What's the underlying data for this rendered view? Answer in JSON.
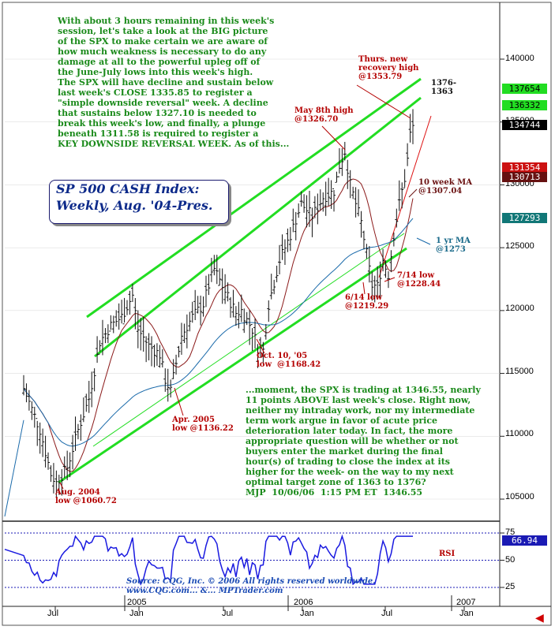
{
  "chart_data": {
    "type": "candlestick",
    "title": "SP 500 CASH Index:",
    "subtitle": "Weekly, Aug. '04-Pres.",
    "y_ticks": [
      "140000",
      "135000",
      "130000",
      "125000",
      "120000",
      "115000",
      "110000",
      "105000"
    ],
    "x_ticks": [
      "Jul",
      "2005",
      "Jan",
      "Jul",
      "2006",
      "Jan",
      "Jul",
      "2007",
      "Jan"
    ],
    "ylim": [
      102000,
      144000
    ],
    "price_boxes": [
      {
        "label": "137654",
        "value": 137654,
        "bg": "#22dd22",
        "fg": "#000000"
      },
      {
        "label": "136332",
        "value": 136332,
        "bg": "#22dd22",
        "fg": "#000000"
      },
      {
        "label": "134744",
        "value": 134744,
        "bg": "#000000",
        "fg": "#ffffff"
      },
      {
        "label": "131354",
        "value": 131354,
        "bg": "#cc1111",
        "fg": "#ffffff"
      },
      {
        "label": "130713",
        "value": 130713,
        "bg": "#661111",
        "fg": "#ffffff"
      },
      {
        "label": "127293",
        "value": 127293,
        "bg": "#117777",
        "fg": "#ffffff"
      }
    ],
    "weekly_close_points": [
      [
        0,
        113800
      ],
      [
        6,
        110500
      ],
      [
        10,
        107000
      ],
      [
        12,
        106300
      ],
      [
        16,
        107500
      ],
      [
        20,
        110500
      ],
      [
        24,
        113000
      ],
      [
        28,
        117500
      ],
      [
        32,
        118800
      ],
      [
        36,
        119500
      ],
      [
        40,
        121200
      ],
      [
        42,
        118500
      ],
      [
        46,
        117200
      ],
      [
        50,
        116500
      ],
      [
        52,
        114500
      ],
      [
        54,
        113600
      ],
      [
        58,
        118000
      ],
      [
        62,
        119500
      ],
      [
        66,
        120500
      ],
      [
        68,
        122000
      ],
      [
        70,
        123300
      ],
      [
        74,
        121500
      ],
      [
        78,
        119800
      ],
      [
        80,
        120000
      ],
      [
        84,
        118500
      ],
      [
        86,
        117000
      ],
      [
        88,
        116842
      ],
      [
        90,
        120500
      ],
      [
        94,
        124000
      ],
      [
        98,
        126000
      ],
      [
        102,
        128500
      ],
      [
        106,
        127500
      ],
      [
        110,
        129000
      ],
      [
        114,
        129500
      ],
      [
        116,
        131500
      ],
      [
        118,
        132670
      ],
      [
        120,
        130000
      ],
      [
        124,
        127000
      ],
      [
        126,
        124500
      ],
      [
        128,
        122000
      ],
      [
        130,
        121929
      ],
      [
        132,
        124000
      ],
      [
        134,
        122844
      ],
      [
        136,
        126000
      ],
      [
        138,
        128500
      ],
      [
        140,
        130500
      ],
      [
        141,
        132000
      ],
      [
        142,
        134000
      ],
      [
        143,
        134655
      ]
    ],
    "rsi": {
      "label": "RSI",
      "levels": [
        75,
        50,
        25
      ],
      "current": "66.94"
    },
    "annotations": [
      {
        "text": "Thurs. new\nrecovery high\n@1353.79"
      },
      {
        "text": "1376-\n1363"
      },
      {
        "text": "May 8th high\n@1326.70"
      },
      {
        "text": "10 week MA\n@1307.04"
      },
      {
        "text": "1 yr MA\n@1273"
      },
      {
        "text": "7/14 low\n@1228.44"
      },
      {
        "text": "6/14 low\n@1219.29"
      },
      {
        "text": "Oct. 10, '05\nlow  @1168.42"
      },
      {
        "text": "Apr. 2005\nlow @1136.22"
      },
      {
        "text": "Aug. 2004\nlow @1060.72"
      }
    ]
  },
  "commentary": {
    "top": "With about 3 hours remaining in this week's\nsession, let's take a look at the BIG picture\nof the SPX to make certain we are aware of\nhow much weakness is necessary to do any\ndamage at all to the powerful upleg off of\nthe June-July lows into this week's high.\nThe SPX will have decline and sustain below\nlast week's CLOSE 1335.85 to register a\n\"simple downside reversal\" week. A decline\nthat sustains below 1327.10 is needed to\nbreak this week's low, and finally, a plunge\nbeneath 1311.58 is required to register a\nKEY DOWNSIDE REVERSAL WEEK. As of this...",
    "bottom": "...moment, the SPX is trading at 1346.55, nearly\n11 points ABOVE last week's close. Right now,\nneither my intraday work, nor my intermediate\nterm work argue in favor of acute price\ndeterioration later today. In fact, the more\nappropriate question will be whether or not\nbuyers enter the market during the final\nhour(s) of trading to close the index at its\nhigher for the week- on the way to my next\noptimal target zone of 1363 to 1376?\nMJP  10/06/06  1:15 PM ET  1346.55"
  },
  "source": "Source: CQG, Inc. © 2006 All rights reserved worldwide.\nwww.CQG.com... &... MPTrader.com"
}
